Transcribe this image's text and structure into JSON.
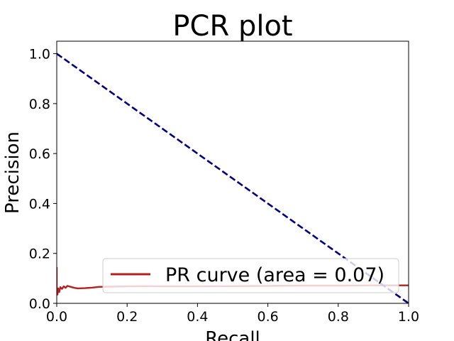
{
  "chart_data": {
    "type": "line",
    "title": "PCR plot",
    "xlabel": "Recall",
    "ylabel": "Precision",
    "xlim": [
      0.0,
      1.0
    ],
    "ylim": [
      0.0,
      1.05
    ],
    "xticks": [
      "0.0",
      "0.2",
      "0.4",
      "0.6",
      "0.8",
      "1.0"
    ],
    "yticks": [
      "0.0",
      "0.2",
      "0.4",
      "0.6",
      "0.8",
      "1.0"
    ],
    "grid": false,
    "legend_position": "lower right",
    "series": [
      {
        "name": "PR curve (area = 0.07)",
        "style": "solid",
        "color": "#b22222",
        "x": [
          0.0,
          0.0,
          0.002,
          0.004,
          0.007,
          0.01,
          0.015,
          0.02,
          0.025,
          0.03,
          0.04,
          0.05,
          0.06,
          0.08,
          0.1,
          0.12,
          0.15,
          0.2,
          0.25,
          0.3,
          0.4,
          0.5,
          0.6,
          0.7,
          0.8,
          0.9,
          1.0
        ],
        "y": [
          0.145,
          0.05,
          0.035,
          0.06,
          0.045,
          0.065,
          0.058,
          0.068,
          0.062,
          0.07,
          0.066,
          0.062,
          0.06,
          0.061,
          0.063,
          0.066,
          0.067,
          0.068,
          0.069,
          0.068,
          0.068,
          0.069,
          0.07,
          0.071,
          0.071,
          0.072,
          0.072
        ]
      },
      {
        "style": "dashed",
        "color": "#000080",
        "x": [
          0.0,
          1.0
        ],
        "y": [
          1.0,
          0.0
        ]
      }
    ]
  }
}
